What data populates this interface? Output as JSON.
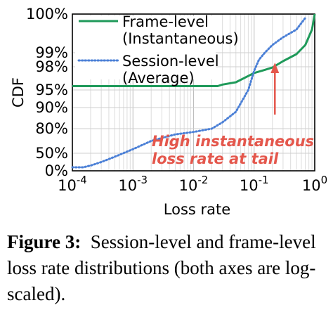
{
  "chart_data": {
    "type": "line",
    "xscale": "log",
    "xlim": [
      0.0001,
      1
    ],
    "x_ticks": [
      0.0001,
      0.001,
      0.01,
      0.1,
      1
    ],
    "x_tick_labels": [
      {
        "base": "10",
        "exp": "-4"
      },
      {
        "base": "10",
        "exp": "-3"
      },
      {
        "base": "10",
        "exp": "-2"
      },
      {
        "base": "10",
        "exp": "-1"
      },
      {
        "base": "10",
        "exp": "0"
      }
    ],
    "ylabel": "CDF",
    "xlabel": "Loss rate",
    "y_tick_labels": [
      "0%",
      "50%",
      "80%",
      "90%",
      "95%",
      "98%",
      "99%",
      "100%"
    ],
    "grid": true,
    "legend_position": "top-left",
    "series": [
      {
        "name": "Frame-level",
        "name_line2": "(Instantaneous)",
        "color": "#1f9a5a",
        "style": "solid",
        "x": [
          0.0001,
          0.001,
          0.01,
          0.025,
          0.03,
          0.05,
          0.1,
          0.15,
          0.2,
          0.3,
          0.5,
          0.7,
          0.9,
          1.0
        ],
        "cdf": [
          0.955,
          0.955,
          0.955,
          0.955,
          0.957,
          0.96,
          0.972,
          0.976,
          0.979,
          0.984,
          0.989,
          0.992,
          0.996,
          1.0
        ]
      },
      {
        "name": "Session-level",
        "name_line2": "(Average)",
        "color": "#4a7fd6",
        "style": "dotted",
        "x": [
          0.0001,
          0.00015,
          0.0002,
          0.0003,
          0.0005,
          0.001,
          0.002,
          0.005,
          0.01,
          0.02,
          0.03,
          0.05,
          0.08,
          0.1,
          0.12,
          0.15,
          0.2,
          0.3,
          0.5,
          0.7
        ],
        "cdf": [
          0.1,
          0.1,
          0.15,
          0.25,
          0.4,
          0.55,
          0.65,
          0.73,
          0.76,
          0.8,
          0.83,
          0.88,
          0.95,
          0.975,
          0.985,
          0.99,
          0.992,
          0.994,
          0.996,
          0.999
        ]
      }
    ],
    "annotation": {
      "line1": "High instantaneous",
      "line2": "loss rate at tail",
      "color": "#e4574c"
    }
  },
  "caption": {
    "label": "Figure 3:",
    "text": "Session-level and frame-level loss rate distributions (both axes are log-scaled)."
  }
}
